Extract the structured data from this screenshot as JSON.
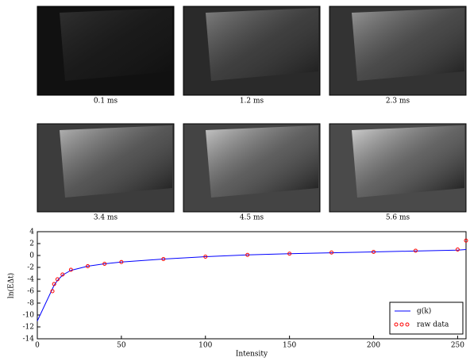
{
  "images": [
    {
      "caption": "0.1 ms"
    },
    {
      "caption": "1.2 ms"
    },
    {
      "caption": "2.3 ms"
    },
    {
      "caption": "3.4 ms"
    },
    {
      "caption": "4.5 ms"
    },
    {
      "caption": "5.6 ms"
    }
  ],
  "chart_data": {
    "type": "line",
    "xlabel": "Intensity",
    "ylabel": "ln(EΔt)",
    "x": [
      0,
      5,
      9,
      10,
      12,
      15,
      20,
      30,
      40,
      50,
      75,
      100,
      125,
      150,
      175,
      200,
      225,
      250,
      255
    ],
    "series": [
      {
        "name": "g(k)",
        "color": "#0000ff",
        "style": "line",
        "values": [
          -11,
          -8,
          -5.6,
          -5,
          -4.2,
          -3.3,
          -2.5,
          -1.8,
          -1.4,
          -1.1,
          -0.6,
          -0.2,
          0.1,
          0.3,
          0.45,
          0.6,
          0.75,
          0.9,
          1.0
        ]
      },
      {
        "name": "raw data",
        "color": "#ff0000",
        "style": "markers",
        "values": [
          null,
          null,
          -6,
          -4.8,
          -4.0,
          -3.2,
          -2.4,
          -1.8,
          -1.4,
          -1.1,
          -0.6,
          -0.2,
          0.1,
          0.3,
          0.5,
          0.6,
          0.8,
          1.0,
          2.5
        ]
      }
    ],
    "xlim": [
      0,
      255
    ],
    "ylim": [
      -14,
      4
    ],
    "xticks": [
      0,
      50,
      100,
      150,
      200,
      250
    ],
    "yticks": [
      -14,
      -12,
      -10,
      -8,
      -6,
      -4,
      -2,
      0,
      2,
      4
    ],
    "legend": "lower right"
  }
}
